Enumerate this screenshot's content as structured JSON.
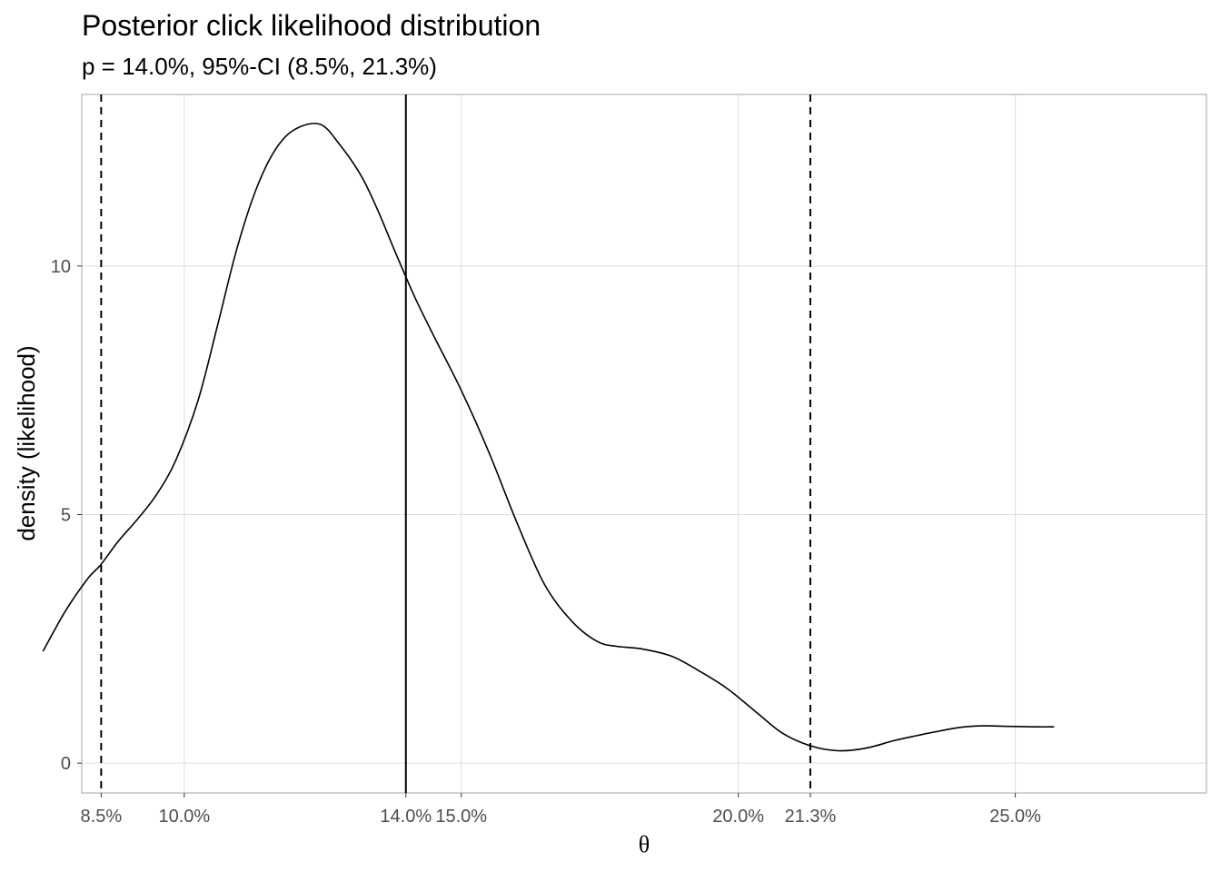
{
  "chart_data": {
    "type": "line",
    "title": "Posterior click likelihood distribution",
    "subtitle": "p = 14.0%, 95%-CI (8.5%, 21.3%)",
    "xlabel": "θ",
    "ylabel": "density (likelihood)",
    "xlim": [
      0.0815,
      0.2845
    ],
    "ylim": [
      -0.6,
      13.45
    ],
    "x_ticks": [
      {
        "value": 0.085,
        "label": "8.5%"
      },
      {
        "value": 0.1,
        "label": "10.0%"
      },
      {
        "value": 0.14,
        "label": "14.0%"
      },
      {
        "value": 0.15,
        "label": "15.0%"
      },
      {
        "value": 0.2,
        "label": "20.0%"
      },
      {
        "value": 0.213,
        "label": "21.3%"
      },
      {
        "value": 0.25,
        "label": "25.0%"
      }
    ],
    "y_ticks": [
      {
        "value": 0,
        "label": "0"
      },
      {
        "value": 5,
        "label": "5"
      },
      {
        "value": 10,
        "label": "10"
      }
    ],
    "x_gridlines": [
      0.1,
      0.15,
      0.2,
      0.25
    ],
    "y_gridlines": [
      0,
      5,
      10
    ],
    "grid": true,
    "vlines": [
      {
        "x": 0.085,
        "style": "dashed"
      },
      {
        "x": 0.14,
        "style": "solid"
      },
      {
        "x": 0.213,
        "style": "dashed"
      }
    ],
    "series": [
      {
        "color": "#000000",
        "x": [
          0.0745,
          0.0785,
          0.0825,
          0.085,
          0.088,
          0.0915,
          0.095,
          0.0985,
          0.1025,
          0.106,
          0.1095,
          0.113,
          0.1165,
          0.12,
          0.1245,
          0.128,
          0.132,
          0.135,
          0.138,
          0.1415,
          0.145,
          0.15,
          0.155,
          0.16,
          0.165,
          0.17,
          0.1745,
          0.178,
          0.1825,
          0.188,
          0.193,
          0.198,
          0.2035,
          0.208,
          0.213,
          0.218,
          0.223,
          0.228,
          0.232,
          0.2365,
          0.24,
          0.244,
          0.249,
          0.2535,
          0.257
        ],
        "y": [
          2.25,
          3.05,
          3.7,
          4.0,
          4.45,
          4.9,
          5.4,
          6.1,
          7.3,
          8.8,
          10.35,
          11.55,
          12.35,
          12.75,
          12.85,
          12.45,
          11.8,
          11.1,
          10.3,
          9.4,
          8.6,
          7.5,
          6.25,
          4.85,
          3.6,
          2.85,
          2.45,
          2.35,
          2.3,
          2.15,
          1.85,
          1.5,
          1.0,
          0.6,
          0.35,
          0.25,
          0.3,
          0.45,
          0.55,
          0.65,
          0.72,
          0.75,
          0.74,
          0.73,
          0.73
        ]
      }
    ]
  }
}
